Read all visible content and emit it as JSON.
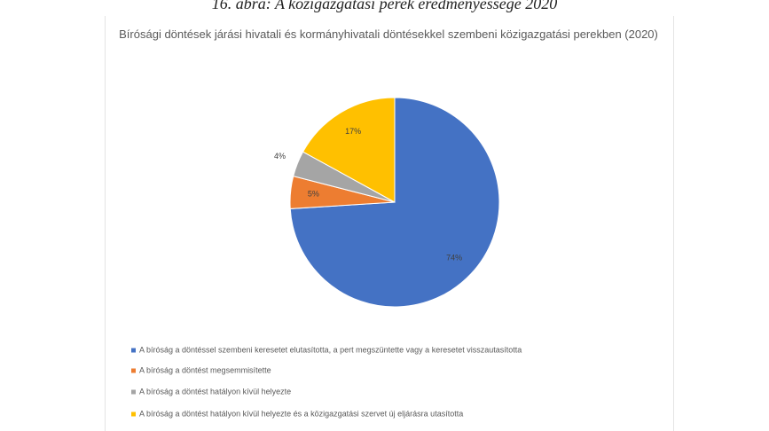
{
  "caption": "16. ábra: A közigazgatási perek eredményessége 2020",
  "chart_data": {
    "type": "pie",
    "title": "Bírósági döntések járási hivatali és kormányhivatali döntésekkel szembeni közigazgatási perekben (2020)",
    "categories": [
      "A bíróság a döntéssel szembeni keresetet elutasította, a pert megszüntette vagy a keresetet visszautasította",
      "A bíróság a döntést megsemmisítette",
      "A bíróság a döntést hatályon kívül helyezte",
      "A bíróság a döntést hatályon kívül helyezte és a közigazgatási szervet új eljárásra utasította"
    ],
    "values": [
      74,
      5,
      4,
      17
    ],
    "value_labels": [
      "74%",
      "5%",
      "4%",
      "17%"
    ],
    "colors": [
      "#4472c4",
      "#ed7d31",
      "#a5a5a5",
      "#ffc000"
    ],
    "legend": "bottom"
  }
}
